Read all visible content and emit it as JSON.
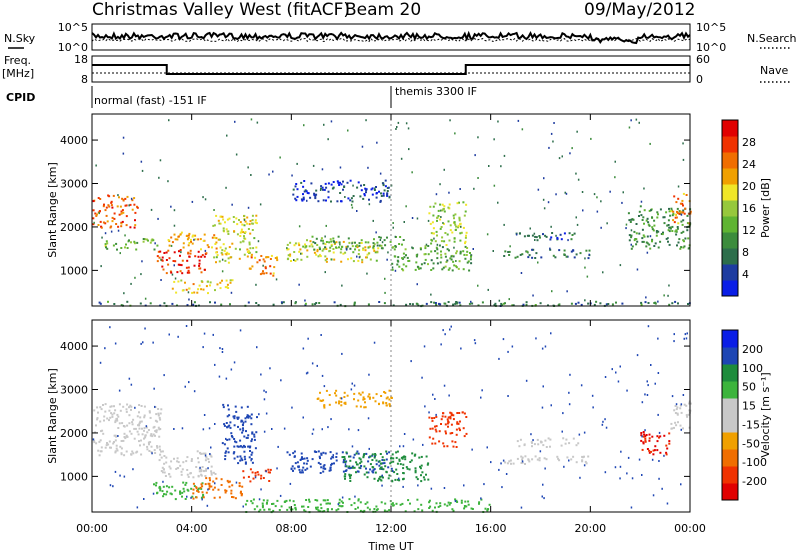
{
  "header": {
    "site": "Christmas Valley West (fitACF)",
    "beam": "Beam 20",
    "date": "09/May/2012"
  },
  "params": {
    "nsky_label": "N.Sky",
    "nsky_ticks": [
      "10^5",
      "10^0"
    ],
    "nsearch_label": "N.Search",
    "nsearch_ticks": [
      "10^5",
      "10^0"
    ],
    "freq_label": "Freq.",
    "freq_unit": "[MHz]",
    "freq_ticks": [
      "18",
      "8"
    ],
    "nave_label": "Nave",
    "nave_ticks": [
      "60",
      "0"
    ],
    "cpid_label": "CPID",
    "cpid_modes": [
      {
        "start_hour": 0,
        "text": "normal (fast) -151 IF"
      },
      {
        "start_hour": 12,
        "text": "themis 3300 IF"
      }
    ]
  },
  "colors": {
    "power": [
      "#0a1ee6",
      "#1e3ca0",
      "#2d6e4b",
      "#3c8c3c",
      "#5fb432",
      "#96c83c",
      "#f0e628",
      "#f0a000",
      "#f06e00",
      "#f03200",
      "#e10000"
    ],
    "velocity": [
      "#e10000",
      "#f03200",
      "#f06e00",
      "#f0a000",
      "#c8c8c8",
      "#c8c8c8",
      "#3cb43c",
      "#1e8c3c",
      "#1e46b4",
      "#0a1ee6"
    ]
  },
  "chart_data": [
    {
      "type": "heatmap",
      "name": "power",
      "ylabel": "Slant Range [km]",
      "y_ticks": [
        1000,
        2000,
        3000,
        4000
      ],
      "ylim": [
        180,
        4600
      ],
      "xlim": [
        0,
        24
      ],
      "colorbar": {
        "label": "Power [dB]",
        "ticks": [
          4,
          8,
          12,
          16,
          20,
          24,
          28
        ],
        "range": [
          0,
          32
        ]
      },
      "echo_bands": [
        {
          "x0": 0.0,
          "x1": 1.8,
          "y0": 2000,
          "y1": 2750,
          "value": 26
        },
        {
          "x0": 0.5,
          "x1": 2.8,
          "y0": 1500,
          "y1": 1750,
          "value": 14
        },
        {
          "x0": 2.6,
          "x1": 4.6,
          "y0": 950,
          "y1": 1500,
          "value": 28
        },
        {
          "x0": 3.0,
          "x1": 5.0,
          "y0": 1500,
          "y1": 1900,
          "value": 22
        },
        {
          "x0": 3.2,
          "x1": 5.6,
          "y0": 500,
          "y1": 800,
          "value": 20
        },
        {
          "x0": 4.8,
          "x1": 6.6,
          "y0": 1200,
          "y1": 2300,
          "value": 18
        },
        {
          "x0": 6.2,
          "x1": 7.4,
          "y0": 900,
          "y1": 1400,
          "value": 24
        },
        {
          "x0": 7.8,
          "x1": 11.5,
          "y0": 1200,
          "y1": 1700,
          "value": 18
        },
        {
          "x0": 8.5,
          "x1": 12.5,
          "y0": 1500,
          "y1": 1800,
          "value": 12
        },
        {
          "x0": 12.0,
          "x1": 15.2,
          "y0": 1000,
          "y1": 1600,
          "value": 12
        },
        {
          "x0": 13.5,
          "x1": 15.0,
          "y0": 1600,
          "y1": 2600,
          "value": 16
        },
        {
          "x0": 8.0,
          "x1": 12.0,
          "y0": 2600,
          "y1": 3100,
          "value": 4
        },
        {
          "x0": 16.5,
          "x1": 20.0,
          "y0": 1300,
          "y1": 1500,
          "value": 8
        },
        {
          "x0": 17.0,
          "x1": 19.5,
          "y0": 1700,
          "y1": 1900,
          "value": 6
        },
        {
          "x0": 21.5,
          "x1": 24.0,
          "y0": 1500,
          "y1": 2500,
          "value": 10
        },
        {
          "x0": 23.2,
          "x1": 24.0,
          "y0": 2100,
          "y1": 2800,
          "value": 24
        },
        {
          "x0": 0.0,
          "x1": 24.0,
          "y0": 200,
          "y1": 300,
          "value": 8
        }
      ]
    },
    {
      "type": "heatmap",
      "name": "velocity",
      "ylabel": "Slant Range [km]",
      "y_ticks": [
        1000,
        2000,
        3000,
        4000
      ],
      "ylim": [
        180,
        4600
      ],
      "xlim": [
        0,
        24
      ],
      "xlabel": "Time UT",
      "x_ticks": [
        "00:00",
        "04:00",
        "08:00",
        "12:00",
        "16:00",
        "20:00",
        "00:00"
      ],
      "colorbar": {
        "label": "Velocity [m s⁻¹]",
        "ticks": [
          -200,
          -100,
          -50,
          -15,
          15,
          50,
          100,
          200
        ]
      },
      "echo_bands": [
        {
          "x0": 0.0,
          "x1": 2.8,
          "y0": 1500,
          "y1": 2700,
          "value": 0
        },
        {
          "x0": 2.6,
          "x1": 5.0,
          "y0": 1000,
          "y1": 1600,
          "value": 0
        },
        {
          "x0": 2.4,
          "x1": 4.5,
          "y0": 500,
          "y1": 900,
          "value": 40
        },
        {
          "x0": 4.0,
          "x1": 6.0,
          "y0": 500,
          "y1": 1000,
          "value": -60
        },
        {
          "x0": 5.2,
          "x1": 6.6,
          "y0": 1300,
          "y1": 2700,
          "value": 160
        },
        {
          "x0": 6.0,
          "x1": 7.2,
          "y0": 900,
          "y1": 1200,
          "value": -120
        },
        {
          "x0": 7.8,
          "x1": 12.0,
          "y0": 1100,
          "y1": 1600,
          "value": 120
        },
        {
          "x0": 10.0,
          "x1": 13.5,
          "y0": 900,
          "y1": 1600,
          "value": 60
        },
        {
          "x0": 13.5,
          "x1": 15.0,
          "y0": 1700,
          "y1": 2500,
          "value": -180
        },
        {
          "x0": 9.0,
          "x1": 12.0,
          "y0": 2600,
          "y1": 3000,
          "value": -40
        },
        {
          "x0": 16.5,
          "x1": 20.0,
          "y0": 1300,
          "y1": 1500,
          "value": 0
        },
        {
          "x0": 17.0,
          "x1": 19.5,
          "y0": 1700,
          "y1": 1900,
          "value": 0
        },
        {
          "x0": 22.0,
          "x1": 23.2,
          "y0": 1500,
          "y1": 2100,
          "value": -200
        },
        {
          "x0": 23.2,
          "x1": 24.0,
          "y0": 2100,
          "y1": 2800,
          "value": 0
        },
        {
          "x0": 6.0,
          "x1": 16.0,
          "y0": 200,
          "y1": 500,
          "value": 30
        }
      ]
    }
  ]
}
